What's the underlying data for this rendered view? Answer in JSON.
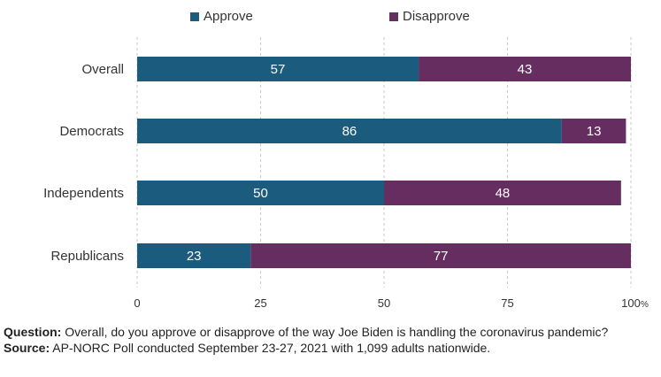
{
  "chart_data": {
    "type": "bar",
    "orientation": "horizontal",
    "stacked": true,
    "categories": [
      "Overall",
      "Democrats",
      "Independents",
      "Republicans"
    ],
    "series": [
      {
        "name": "Approve",
        "values": [
          57,
          86,
          50,
          23
        ],
        "color": "#1b5b7d"
      },
      {
        "name": "Disapprove",
        "values": [
          43,
          13,
          48,
          77
        ],
        "color": "#662d61"
      }
    ],
    "xlim": [
      0,
      100
    ],
    "xticks": [
      0,
      25,
      50,
      75,
      100
    ],
    "xtick_suffix": "%",
    "legend_position": "top-center",
    "grid": "vertical dashed"
  },
  "legend": {
    "approve_label": "Approve",
    "disapprove_label": "Disapprove"
  },
  "notes": {
    "question_label": "Question:",
    "question_text": " Overall, do you approve or disapprove of the way Joe Biden is handling the coronavirus pandemic?",
    "source_label": "Source:",
    "source_text": " AP-NORC Poll conducted September 23-27, 2021 with 1,099 adults nationwide."
  }
}
